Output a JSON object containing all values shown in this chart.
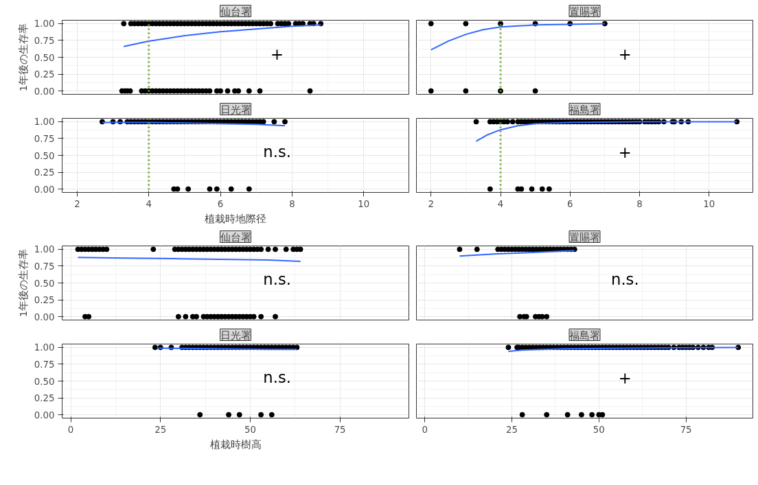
{
  "chart_data": [
    {
      "type": "scatter",
      "title": "仙台署",
      "ylabel": "1年後の生存率",
      "xlim": [
        1.58,
        11.26
      ],
      "ylim": [
        -0.05,
        1.05
      ],
      "xticks": [
        2,
        4,
        6,
        8,
        10
      ],
      "yticks": [
        {
          "value": 0,
          "label": "0.00"
        },
        {
          "value": 0.25,
          "label": "0.25"
        },
        {
          "value": 0.5,
          "label": "0.50"
        },
        {
          "value": 0.75,
          "label": "0.75"
        },
        {
          "value": 1,
          "label": "1.00"
        }
      ],
      "tick_labels": "y",
      "grid": true,
      "marker": "circle",
      "annotations": [
        "+"
      ],
      "ref_lines": [
        {
          "axis": "x",
          "value": 4,
          "color": "#6aaa2a",
          "line_style": "dotted"
        }
      ],
      "series": [
        {
          "color": "#000000",
          "x": [
            3.3,
            3.5,
            3.6,
            3.7,
            3.8,
            3.9,
            4.0,
            4.1,
            4.2,
            4.3,
            4.4,
            4.5,
            4.6,
            4.7,
            4.8,
            4.9,
            5.0,
            5.1,
            5.2,
            5.3,
            5.4,
            5.5,
            5.6,
            5.7,
            5.8,
            5.9,
            6.0,
            6.1,
            6.2,
            6.3,
            6.4,
            6.5,
            6.6,
            6.7,
            6.8,
            6.9,
            7.0,
            7.1,
            7.2,
            7.3,
            7.4,
            7.6,
            7.7,
            7.8,
            7.9,
            8.1,
            8.2,
            8.3,
            8.5,
            8.6,
            8.8,
            3.25,
            3.33,
            3.4,
            3.48,
            3.8,
            3.9,
            4.0,
            4.1,
            4.2,
            4.3,
            4.4,
            4.5,
            4.6,
            4.7,
            4.8,
            4.9,
            5.0,
            5.1,
            5.2,
            5.3,
            5.4,
            5.5,
            5.6,
            5.7,
            5.9,
            6.0,
            6.2,
            6.4,
            6.5,
            6.8,
            7.1,
            8.5
          ],
          "values": [
            1,
            1,
            1,
            1,
            1,
            1,
            1,
            1,
            1,
            1,
            1,
            1,
            1,
            1,
            1,
            1,
            1,
            1,
            1,
            1,
            1,
            1,
            1,
            1,
            1,
            1,
            1,
            1,
            1,
            1,
            1,
            1,
            1,
            1,
            1,
            1,
            1,
            1,
            1,
            1,
            1,
            1,
            1,
            1,
            1,
            1,
            1,
            1,
            1,
            1,
            1,
            0,
            0,
            0,
            0,
            0,
            0,
            0,
            0,
            0,
            0,
            0,
            0,
            0,
            0,
            0,
            0,
            0,
            0,
            0,
            0,
            0,
            0,
            0,
            0,
            0,
            0,
            0,
            0,
            0,
            0,
            0,
            0
          ]
        },
        {
          "type": "line",
          "marker": "none",
          "color": "#3366ff",
          "x": [
            3.3,
            4,
            5,
            6,
            7,
            8,
            8.8
          ],
          "values": [
            0.66,
            0.74,
            0.82,
            0.88,
            0.92,
            0.96,
            0.98
          ]
        }
      ]
    },
    {
      "type": "scatter",
      "title": "置賜署",
      "xlim": [
        1.58,
        11.26
      ],
      "ylim": [
        -0.05,
        1.05
      ],
      "xticks": [
        2,
        4,
        6,
        8,
        10
      ],
      "yticks": [
        0,
        0.25,
        0.5,
        0.75,
        1
      ],
      "tick_labels": false,
      "grid": true,
      "marker": "circle",
      "annotations": [
        "+"
      ],
      "ref_lines": [
        {
          "axis": "x",
          "value": 4,
          "color": "#6aaa2a",
          "line_style": "dotted"
        }
      ],
      "series": [
        {
          "color": "#000000",
          "x": [
            2,
            3,
            4,
            5,
            6,
            7,
            2,
            3,
            4,
            5
          ],
          "values": [
            1,
            1,
            1,
            1,
            1,
            1,
            0,
            0,
            0,
            0
          ]
        },
        {
          "type": "line",
          "marker": "none",
          "color": "#3366ff",
          "x": [
            2,
            2.5,
            3,
            3.5,
            4,
            5,
            6,
            7
          ],
          "values": [
            0.61,
            0.74,
            0.84,
            0.91,
            0.95,
            0.98,
            0.99,
            1.0
          ]
        }
      ]
    },
    {
      "type": "scatter",
      "title": "日光署",
      "xlabel": "植栽時地際径",
      "xlim": [
        1.58,
        11.26
      ],
      "ylim": [
        -0.05,
        1.05
      ],
      "xticks": [
        2,
        4,
        6,
        8,
        10
      ],
      "yticks": [
        {
          "value": 0,
          "label": "0.00"
        },
        {
          "value": 0.25,
          "label": "0.25"
        },
        {
          "value": 0.5,
          "label": "0.50"
        },
        {
          "value": 0.75,
          "label": "0.75"
        },
        {
          "value": 1,
          "label": "1.00"
        }
      ],
      "grid": true,
      "marker": "circle",
      "annotations": [
        "n.s."
      ],
      "ref_lines": [
        {
          "axis": "x",
          "value": 4,
          "color": "#6aaa2a",
          "line_style": "dotted"
        }
      ],
      "series": [
        {
          "color": "#000000",
          "x": [
            2.7,
            3.0,
            3.2,
            3.4,
            3.5,
            3.6,
            3.7,
            3.8,
            3.9,
            4.0,
            4.1,
            4.2,
            4.3,
            4.4,
            4.5,
            4.6,
            4.7,
            4.8,
            4.9,
            5.0,
            5.1,
            5.2,
            5.3,
            5.4,
            5.5,
            5.6,
            5.7,
            5.8,
            5.9,
            6.0,
            6.1,
            6.2,
            6.3,
            6.4,
            6.5,
            6.6,
            6.7,
            6.8,
            6.9,
            7.0,
            7.1,
            7.2,
            7.5,
            7.8,
            4.7,
            4.8,
            5.1,
            5.7,
            5.9,
            6.3,
            6.8
          ],
          "values": [
            1,
            1,
            1,
            1,
            1,
            1,
            1,
            1,
            1,
            1,
            1,
            1,
            1,
            1,
            1,
            1,
            1,
            1,
            1,
            1,
            1,
            1,
            1,
            1,
            1,
            1,
            1,
            1,
            1,
            1,
            1,
            1,
            1,
            1,
            1,
            1,
            1,
            1,
            1,
            1,
            1,
            1,
            1,
            1,
            0,
            0,
            0,
            0,
            0,
            0,
            0
          ]
        },
        {
          "type": "line",
          "marker": "none",
          "color": "#3366ff",
          "x": [
            2.7,
            4,
            5,
            6,
            7,
            7.8
          ],
          "values": [
            0.99,
            0.99,
            0.98,
            0.97,
            0.96,
            0.94
          ]
        }
      ]
    },
    {
      "type": "scatter",
      "title": "福島署",
      "xlim": [
        1.58,
        11.26
      ],
      "ylim": [
        -0.05,
        1.05
      ],
      "xticks": [
        2,
        4,
        6,
        8,
        10
      ],
      "yticks": [
        0,
        0.25,
        0.5,
        0.75,
        1
      ],
      "tick_labels": "x",
      "grid": true,
      "marker": "circle",
      "annotations": [
        "+"
      ],
      "ref_lines": [
        {
          "axis": "x",
          "value": 4,
          "color": "#6aaa2a",
          "line_style": "dotted"
        }
      ],
      "series": [
        {
          "color": "#000000",
          "x": [
            3.3,
            3.7,
            3.8,
            3.9,
            4.0,
            4.1,
            4.2,
            4.35,
            4.5,
            4.6,
            4.7,
            4.8,
            4.9,
            5.0,
            5.1,
            5.2,
            5.3,
            5.4,
            5.5,
            5.6,
            5.7,
            5.8,
            5.9,
            6.0,
            6.1,
            6.2,
            6.3,
            6.4,
            6.5,
            6.6,
            6.7,
            6.8,
            6.9,
            7.0,
            7.1,
            7.2,
            7.3,
            7.4,
            7.5,
            7.6,
            7.7,
            7.8,
            7.9,
            8.0,
            8.15,
            8.25,
            8.35,
            8.45,
            8.55,
            8.7,
            8.95,
            9.0,
            9.2,
            9.4,
            10.8,
            3.7,
            4.5,
            4.6,
            4.9,
            5.2,
            5.4
          ],
          "values": [
            1,
            1,
            1,
            1,
            1,
            1,
            1,
            1,
            1,
            1,
            1,
            1,
            1,
            1,
            1,
            1,
            1,
            1,
            1,
            1,
            1,
            1,
            1,
            1,
            1,
            1,
            1,
            1,
            1,
            1,
            1,
            1,
            1,
            1,
            1,
            1,
            1,
            1,
            1,
            1,
            1,
            1,
            1,
            1,
            1,
            1,
            1,
            1,
            1,
            1,
            1,
            1,
            1,
            1,
            1,
            0,
            0,
            0,
            0,
            0,
            0
          ]
        },
        {
          "type": "line",
          "marker": "none",
          "color": "#3366ff",
          "x": [
            3.3,
            3.6,
            4,
            4.5,
            5,
            6,
            8,
            10.8
          ],
          "values": [
            0.71,
            0.8,
            0.88,
            0.94,
            0.97,
            0.99,
            1.0,
            1.0
          ]
        }
      ]
    },
    {
      "type": "scatter",
      "title": "仙台署",
      "ylabel": "1年後の生存率",
      "xlim": [
        -2.4,
        94.2
      ],
      "ylim": [
        -0.05,
        1.05
      ],
      "xticks": [
        0,
        25,
        50,
        75
      ],
      "yticks": [
        {
          "value": 0,
          "label": "0.00"
        },
        {
          "value": 0.25,
          "label": "0.25"
        },
        {
          "value": 0.5,
          "label": "0.50"
        },
        {
          "value": 0.75,
          "label": "0.75"
        },
        {
          "value": 1,
          "label": "1.00"
        }
      ],
      "tick_labels": "y",
      "grid": true,
      "marker": "circle",
      "annotations": [
        "n.s."
      ],
      "series": [
        {
          "color": "#000000",
          "x": [
            2,
            3,
            4,
            5,
            6,
            7,
            8,
            9,
            10,
            23,
            29,
            30,
            31,
            32,
            33,
            34,
            35,
            36,
            37,
            38,
            39,
            40,
            41,
            42,
            43,
            44,
            45,
            46,
            47,
            48,
            49,
            50,
            51,
            52,
            53,
            55,
            57,
            60,
            62,
            63,
            64,
            4,
            5,
            30,
            32,
            34,
            35,
            37,
            38,
            39,
            40,
            41,
            42,
            43,
            44,
            45,
            46,
            47,
            48,
            49,
            50,
            51,
            53,
            57
          ],
          "values": [
            1,
            1,
            1,
            1,
            1,
            1,
            1,
            1,
            1,
            1,
            1,
            1,
            1,
            1,
            1,
            1,
            1,
            1,
            1,
            1,
            1,
            1,
            1,
            1,
            1,
            1,
            1,
            1,
            1,
            1,
            1,
            1,
            1,
            1,
            1,
            1,
            1,
            1,
            1,
            1,
            1,
            0,
            0,
            0,
            0,
            0,
            0,
            0,
            0,
            0,
            0,
            0,
            0,
            0,
            0,
            0,
            0,
            0,
            0,
            0,
            0,
            0,
            0,
            0
          ]
        },
        {
          "type": "line",
          "marker": "none",
          "color": "#3366ff",
          "x": [
            2,
            15,
            30,
            45,
            55,
            64
          ],
          "values": [
            0.88,
            0.87,
            0.86,
            0.85,
            0.84,
            0.82
          ]
        }
      ]
    },
    {
      "type": "scatter",
      "title": "置賜署",
      "xlim": [
        -2.4,
        94.2
      ],
      "ylim": [
        -0.05,
        1.05
      ],
      "xticks": [
        0,
        25,
        50,
        75
      ],
      "yticks": [
        0,
        0.25,
        0.5,
        0.75,
        1
      ],
      "tick_labels": false,
      "grid": true,
      "marker": "circle",
      "annotations": [
        "n.s."
      ],
      "series": [
        {
          "color": "#000000",
          "x": [
            10,
            15,
            21,
            22,
            23,
            24,
            25,
            26,
            27,
            28,
            29,
            30,
            31,
            32,
            33,
            34,
            35,
            36,
            37,
            38,
            39,
            40,
            41,
            42,
            43,
            27.3,
            28.5,
            29.2,
            31.8,
            32.8,
            33.7,
            35
          ],
          "values": [
            1,
            1,
            1,
            1,
            1,
            1,
            1,
            1,
            1,
            1,
            1,
            1,
            1,
            1,
            1,
            1,
            1,
            1,
            1,
            1,
            1,
            1,
            1,
            1,
            1,
            0,
            0,
            0,
            0,
            0,
            0,
            0
          ]
        },
        {
          "type": "line",
          "marker": "none",
          "color": "#3366ff",
          "x": [
            10,
            20,
            30,
            43
          ],
          "values": [
            0.9,
            0.93,
            0.95,
            0.98
          ]
        }
      ]
    },
    {
      "type": "scatter",
      "title": "日光署",
      "xlabel": "植栽時樹高",
      "xlim": [
        -2.4,
        94.2
      ],
      "ylim": [
        -0.05,
        1.05
      ],
      "xticks": [
        0,
        25,
        50,
        75
      ],
      "yticks": [
        {
          "value": 0,
          "label": "0.00"
        },
        {
          "value": 0.25,
          "label": "0.25"
        },
        {
          "value": 0.5,
          "label": "0.50"
        },
        {
          "value": 0.75,
          "label": "0.75"
        },
        {
          "value": 1,
          "label": "1.00"
        }
      ],
      "grid": true,
      "marker": "circle",
      "annotations": [
        "n.s."
      ],
      "series": [
        {
          "color": "#000000",
          "x": [
            23.5,
            25,
            28,
            31,
            32,
            33,
            34,
            35,
            36,
            37,
            38,
            39,
            40,
            41,
            42,
            43,
            44,
            45,
            46,
            47,
            48,
            49,
            50,
            51,
            52,
            53,
            54,
            55,
            56,
            57,
            58,
            59,
            60,
            61,
            62,
            63,
            36,
            44,
            47,
            53,
            56
          ],
          "values": [
            1,
            1,
            1,
            1,
            1,
            1,
            1,
            1,
            1,
            1,
            1,
            1,
            1,
            1,
            1,
            1,
            1,
            1,
            1,
            1,
            1,
            1,
            1,
            1,
            1,
            1,
            1,
            1,
            1,
            1,
            1,
            1,
            1,
            1,
            1,
            1,
            0,
            0,
            0,
            0,
            0
          ]
        },
        {
          "type": "line",
          "marker": "none",
          "color": "#3366ff",
          "x": [
            24,
            40,
            55,
            63
          ],
          "values": [
            0.99,
            0.98,
            0.97,
            0.97
          ]
        }
      ]
    },
    {
      "type": "scatter",
      "title": "福島署",
      "xlim": [
        -2.4,
        94.2
      ],
      "ylim": [
        -0.05,
        1.05
      ],
      "xticks": [
        0,
        25,
        50,
        75
      ],
      "yticks": [
        0,
        0.25,
        0.5,
        0.75,
        1
      ],
      "tick_labels": "x",
      "grid": true,
      "marker": "circle",
      "annotations": [
        "+"
      ],
      "series": [
        {
          "color": "#000000",
          "x": [
            24,
            26.5,
            27,
            28,
            29,
            30,
            31,
            32,
            33,
            34,
            35,
            36,
            37,
            38,
            39,
            40,
            41,
            42,
            43,
            44,
            45,
            46,
            47,
            48,
            49,
            50,
            51,
            52,
            53,
            54,
            55,
            56,
            57,
            58,
            59,
            60,
            61,
            62,
            63,
            64,
            65,
            66,
            67,
            68,
            69,
            70,
            71.5,
            73,
            74,
            75,
            76,
            77,
            78.5,
            80,
            81.5,
            82.5,
            90,
            28,
            35,
            41,
            45,
            48,
            50,
            51
          ],
          "values": [
            1,
            1,
            1,
            1,
            1,
            1,
            1,
            1,
            1,
            1,
            1,
            1,
            1,
            1,
            1,
            1,
            1,
            1,
            1,
            1,
            1,
            1,
            1,
            1,
            1,
            1,
            1,
            1,
            1,
            1,
            1,
            1,
            1,
            1,
            1,
            1,
            1,
            1,
            1,
            1,
            1,
            1,
            1,
            1,
            1,
            1,
            1,
            1,
            1,
            1,
            1,
            1,
            1,
            1,
            1,
            1,
            1,
            0,
            0,
            0,
            0,
            0,
            0,
            0
          ]
        },
        {
          "type": "line",
          "marker": "none",
          "color": "#3366ff",
          "x": [
            24,
            28,
            40,
            60,
            90
          ],
          "values": [
            0.94,
            0.96,
            0.98,
            0.99,
            1.0
          ]
        }
      ]
    }
  ]
}
